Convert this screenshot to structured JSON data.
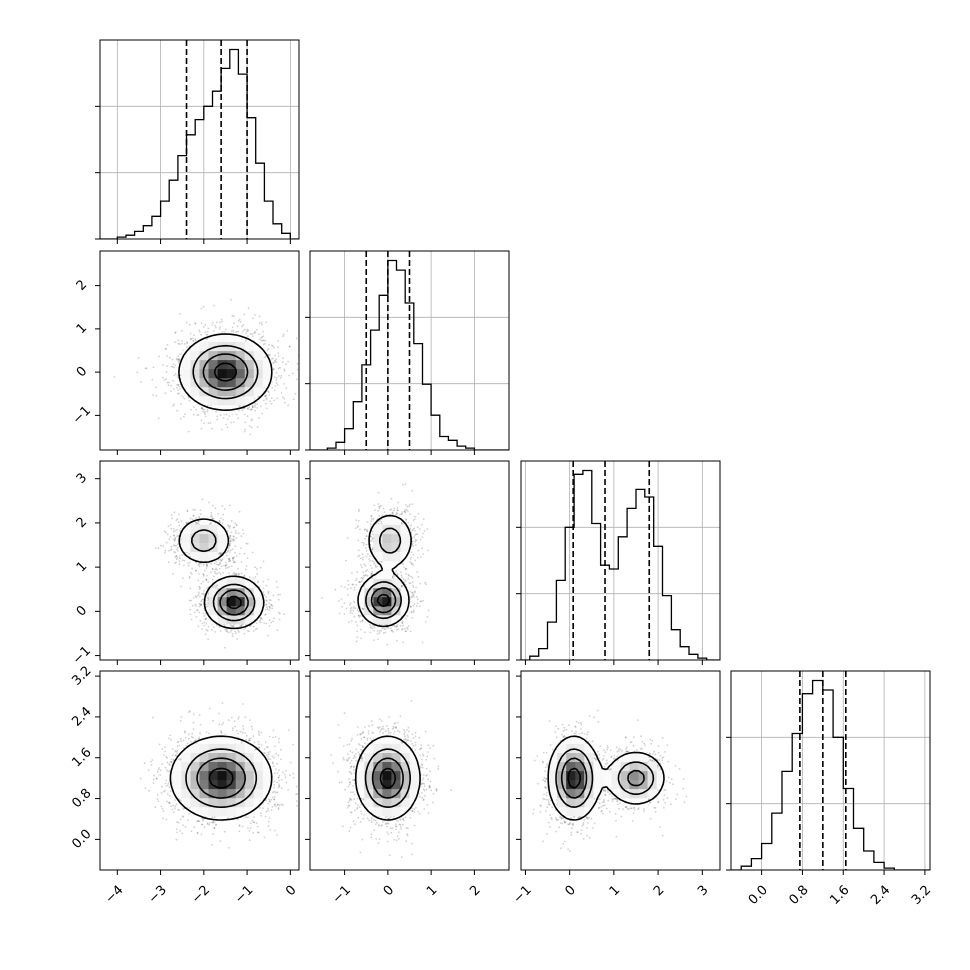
{
  "chart_data": {
    "type": "corner",
    "n_params": 4,
    "parameters": [
      {
        "range": [
          -4.4,
          0.2
        ],
        "ticks": [
          -4,
          -3,
          -2,
          -1,
          0
        ],
        "tick_labels": [
          "−4",
          "−3",
          "−2",
          "−1",
          "0"
        ],
        "mean": -1.6,
        "quantiles": [
          -2.4,
          -1.6,
          -1.0
        ],
        "hist_bins": [
          -4.4,
          -4.2,
          -4.0,
          -3.8,
          -3.6,
          -3.4,
          -3.2,
          -3.0,
          -2.8,
          -2.6,
          -2.4,
          -2.2,
          -2.0,
          -1.8,
          -1.6,
          -1.4,
          -1.2,
          -1.0,
          -0.8,
          -0.6,
          -0.4,
          -0.2,
          0.0,
          0.2
        ],
        "hist_values": [
          0,
          0,
          0.01,
          0.02,
          0.04,
          0.07,
          0.12,
          0.2,
          0.31,
          0.44,
          0.55,
          0.63,
          0.7,
          0.78,
          0.9,
          1.0,
          0.87,
          0.64,
          0.4,
          0.2,
          0.08,
          0.03,
          0.0
        ]
      },
      {
        "range": [
          -1.8,
          2.8
        ],
        "ticks": [
          -1,
          0,
          1,
          2
        ],
        "tick_labels": [
          "−1",
          "0",
          "1",
          "2"
        ],
        "mean": 0.0,
        "quantiles": [
          -0.5,
          0.0,
          0.5
        ],
        "hist_bins": [
          -1.8,
          -1.6,
          -1.4,
          -1.2,
          -1.0,
          -0.8,
          -0.6,
          -0.4,
          -0.2,
          0.0,
          0.2,
          0.4,
          0.6,
          0.8,
          1.0,
          1.2,
          1.4,
          1.6,
          1.8,
          2.0,
          2.2,
          2.4,
          2.6,
          2.8
        ],
        "hist_values": [
          0,
          0,
          0.01,
          0.04,
          0.11,
          0.25,
          0.44,
          0.62,
          0.8,
          0.98,
          0.93,
          0.76,
          0.55,
          0.34,
          0.18,
          0.07,
          0.05,
          0.02,
          0.01,
          0,
          0,
          0,
          0
        ]
      },
      {
        "range": [
          -1.1,
          3.4
        ],
        "ticks": [
          -1,
          0,
          1,
          2,
          3
        ],
        "tick_labels": [
          "−1",
          "0",
          "1",
          "2",
          "3"
        ],
        "mean": 0.8,
        "quantiles": [
          0.08,
          0.8,
          1.8
        ],
        "hist_bins": [
          -1.1,
          -0.9,
          -0.7,
          -0.5,
          -0.3,
          -0.1,
          0.1,
          0.3,
          0.5,
          0.7,
          0.9,
          1.1,
          1.3,
          1.5,
          1.7,
          1.9,
          2.1,
          2.3,
          2.5,
          2.7,
          2.9,
          3.1,
          3.4
        ],
        "hist_values": [
          0,
          0.02,
          0.06,
          0.2,
          0.42,
          0.7,
          0.98,
          1.0,
          0.72,
          0.5,
          0.48,
          0.65,
          0.8,
          0.9,
          0.86,
          0.6,
          0.34,
          0.16,
          0.07,
          0.03,
          0.01,
          0
        ]
      },
      {
        "range": [
          -0.6,
          3.3
        ],
        "ticks": [
          0.0,
          0.8,
          1.6,
          2.4,
          3.2
        ],
        "tick_labels": [
          "0.0",
          "0.8",
          "1.6",
          "2.4",
          "3.2"
        ],
        "mean": 1.2,
        "quantiles": [
          0.75,
          1.2,
          1.65
        ],
        "hist_bins": [
          -0.6,
          -0.4,
          -0.2,
          0.0,
          0.2,
          0.4,
          0.6,
          0.8,
          1.0,
          1.2,
          1.4,
          1.6,
          1.8,
          2.0,
          2.2,
          2.4,
          2.6,
          2.8,
          3.0,
          3.3
        ],
        "hist_values": [
          0,
          0.02,
          0.06,
          0.14,
          0.3,
          0.52,
          0.72,
          0.93,
          1.0,
          0.95,
          0.7,
          0.43,
          0.22,
          0.1,
          0.04,
          0.01,
          0,
          0,
          0
        ]
      }
    ],
    "hist_yticks": [
      0.0,
      0.35,
      0.7
    ],
    "joint_distributions": [
      {
        "x": 0,
        "y": 1,
        "modes": [
          {
            "mx": -1.5,
            "my": 0.0,
            "sx": 0.55,
            "sy": 0.45,
            "w": 1.0
          }
        ]
      },
      {
        "x": 0,
        "y": 2,
        "modes": [
          {
            "mx": -2.0,
            "my": 1.6,
            "sx": 0.35,
            "sy": 0.3,
            "w": 0.55
          },
          {
            "mx": -1.3,
            "my": 0.2,
            "sx": 0.35,
            "sy": 0.3,
            "w": 1.0
          }
        ]
      },
      {
        "x": 0,
        "y": 3,
        "modes": [
          {
            "mx": -1.6,
            "my": 1.2,
            "sx": 0.6,
            "sy": 0.42,
            "w": 1.0
          }
        ]
      },
      {
        "x": 1,
        "y": 2,
        "modes": [
          {
            "mx": 0.05,
            "my": 1.6,
            "sx": 0.3,
            "sy": 0.35,
            "w": 0.55
          },
          {
            "mx": -0.1,
            "my": 0.25,
            "sx": 0.3,
            "sy": 0.3,
            "w": 1.0
          }
        ]
      },
      {
        "x": 1,
        "y": 3,
        "modes": [
          {
            "mx": 0.0,
            "my": 1.2,
            "sx": 0.38,
            "sy": 0.42,
            "w": 1.0
          }
        ]
      },
      {
        "x": 2,
        "y": 3,
        "modes": [
          {
            "mx": 0.1,
            "my": 1.2,
            "sx": 0.3,
            "sy": 0.42,
            "w": 1.0
          },
          {
            "mx": 1.5,
            "my": 1.2,
            "sx": 0.35,
            "sy": 0.28,
            "w": 0.75
          }
        ]
      }
    ],
    "contour_levels": [
      0.15,
      0.4,
      0.65,
      0.9
    ],
    "grid": true,
    "colors": {
      "line": "#000000",
      "grid": "#b0b0b0",
      "scatter": "#000000",
      "shade": "#000000"
    }
  }
}
